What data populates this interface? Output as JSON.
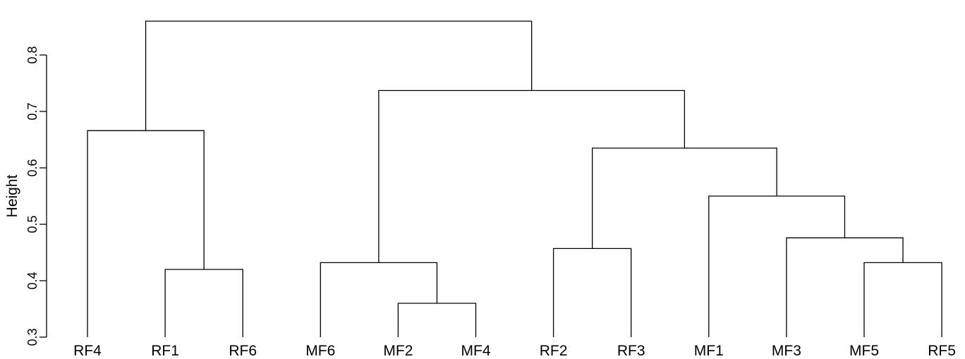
{
  "chart_data": {
    "type": "dendrogram",
    "title": "",
    "xlabel": "",
    "ylabel": "Height",
    "ylim": [
      0.3,
      0.88
    ],
    "yticks": [
      0.3,
      0.4,
      0.5,
      0.6,
      0.7,
      0.8
    ],
    "yticklabels": [
      "0.3",
      "0.4",
      "0.5",
      "0.6",
      "0.7",
      "0.8"
    ],
    "leaves": [
      "RF4",
      "RF1",
      "RF6",
      "MF6",
      "MF2",
      "MF4",
      "RF2",
      "RF3",
      "MF1",
      "MF3",
      "MF5",
      "RF5"
    ],
    "merges": [
      {
        "left": "MF2",
        "right": "MF4",
        "height": 0.36
      },
      {
        "left": "MF5",
        "right": "RF5",
        "height": 0.432
      },
      {
        "left": "RF1",
        "right": "RF6",
        "height": 0.42
      },
      {
        "left": "MF6",
        "right": "MF2+MF4",
        "height": 0.432
      },
      {
        "left": "RF2",
        "right": "RF3",
        "height": 0.457
      },
      {
        "left": "MF3",
        "right": "MF5+RF5",
        "height": 0.476
      },
      {
        "left": "MF1",
        "right": "MF3+MF5+RF5",
        "height": 0.55
      },
      {
        "left": "RF2+RF3",
        "right": "MF1+MF3+MF5+RF5",
        "height": 0.635
      },
      {
        "left": "RF4",
        "right": "RF1+RF6",
        "height": 0.666
      },
      {
        "left": "MF6+MF2+MF4",
        "right": "RF2+RF3+MF1+MF3+MF5+RF5",
        "height": 0.737
      },
      {
        "left": "RF4+RF1+RF6",
        "right": "MF6+MF2+MF4+RF2+RF3+MF1+MF3+MF5+RF5",
        "height": 0.86
      }
    ]
  }
}
